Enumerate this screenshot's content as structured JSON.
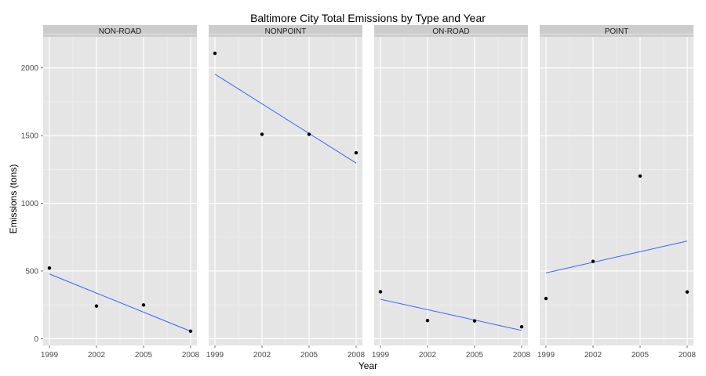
{
  "chart_data": {
    "type": "scatter",
    "title": "Baltimore City Total Emissions by Type and Year",
    "xlabel": "Year",
    "ylabel": "Emissions (tons)",
    "x_ticks": [
      1999,
      2002,
      2005,
      2008
    ],
    "y_ticks": [
      0,
      500,
      1000,
      1500,
      2000
    ],
    "xlim": [
      1998.8,
      2008.2
    ],
    "ylim": [
      -50,
      2230
    ],
    "grid": true,
    "trend_line": "linear fit",
    "facets": [
      {
        "name": "NON-ROAD",
        "points": [
          {
            "x": 1999,
            "y": 522
          },
          {
            "x": 2002,
            "y": 241
          },
          {
            "x": 2005,
            "y": 249
          },
          {
            "x": 2008,
            "y": 55
          }
        ],
        "fit": [
          {
            "x": 1999,
            "y": 478
          },
          {
            "x": 2008,
            "y": 55
          }
        ]
      },
      {
        "name": "NONPOINT",
        "points": [
          {
            "x": 1999,
            "y": 2108
          },
          {
            "x": 2002,
            "y": 1510
          },
          {
            "x": 2005,
            "y": 1510
          },
          {
            "x": 2008,
            "y": 1373
          }
        ],
        "fit": [
          {
            "x": 1999,
            "y": 1954
          },
          {
            "x": 2008,
            "y": 1297
          }
        ]
      },
      {
        "name": "ON-ROAD",
        "points": [
          {
            "x": 1999,
            "y": 347
          },
          {
            "x": 2002,
            "y": 134
          },
          {
            "x": 2005,
            "y": 131
          },
          {
            "x": 2008,
            "y": 88
          }
        ],
        "fit": [
          {
            "x": 1999,
            "y": 291
          },
          {
            "x": 2008,
            "y": 61
          }
        ]
      },
      {
        "name": "POINT",
        "points": [
          {
            "x": 1999,
            "y": 297
          },
          {
            "x": 2002,
            "y": 571
          },
          {
            "x": 2005,
            "y": 1202
          },
          {
            "x": 2008,
            "y": 345
          }
        ],
        "fit": [
          {
            "x": 1999,
            "y": 486
          },
          {
            "x": 2008,
            "y": 721
          }
        ]
      }
    ],
    "colors": {
      "panel_bg": "#e5e5e5",
      "strip_bg": "#cccccc",
      "grid_major": "#ffffff",
      "grid_minor": "#f2f2f2",
      "points": "#000000",
      "fit_line": "#3366ff"
    }
  }
}
